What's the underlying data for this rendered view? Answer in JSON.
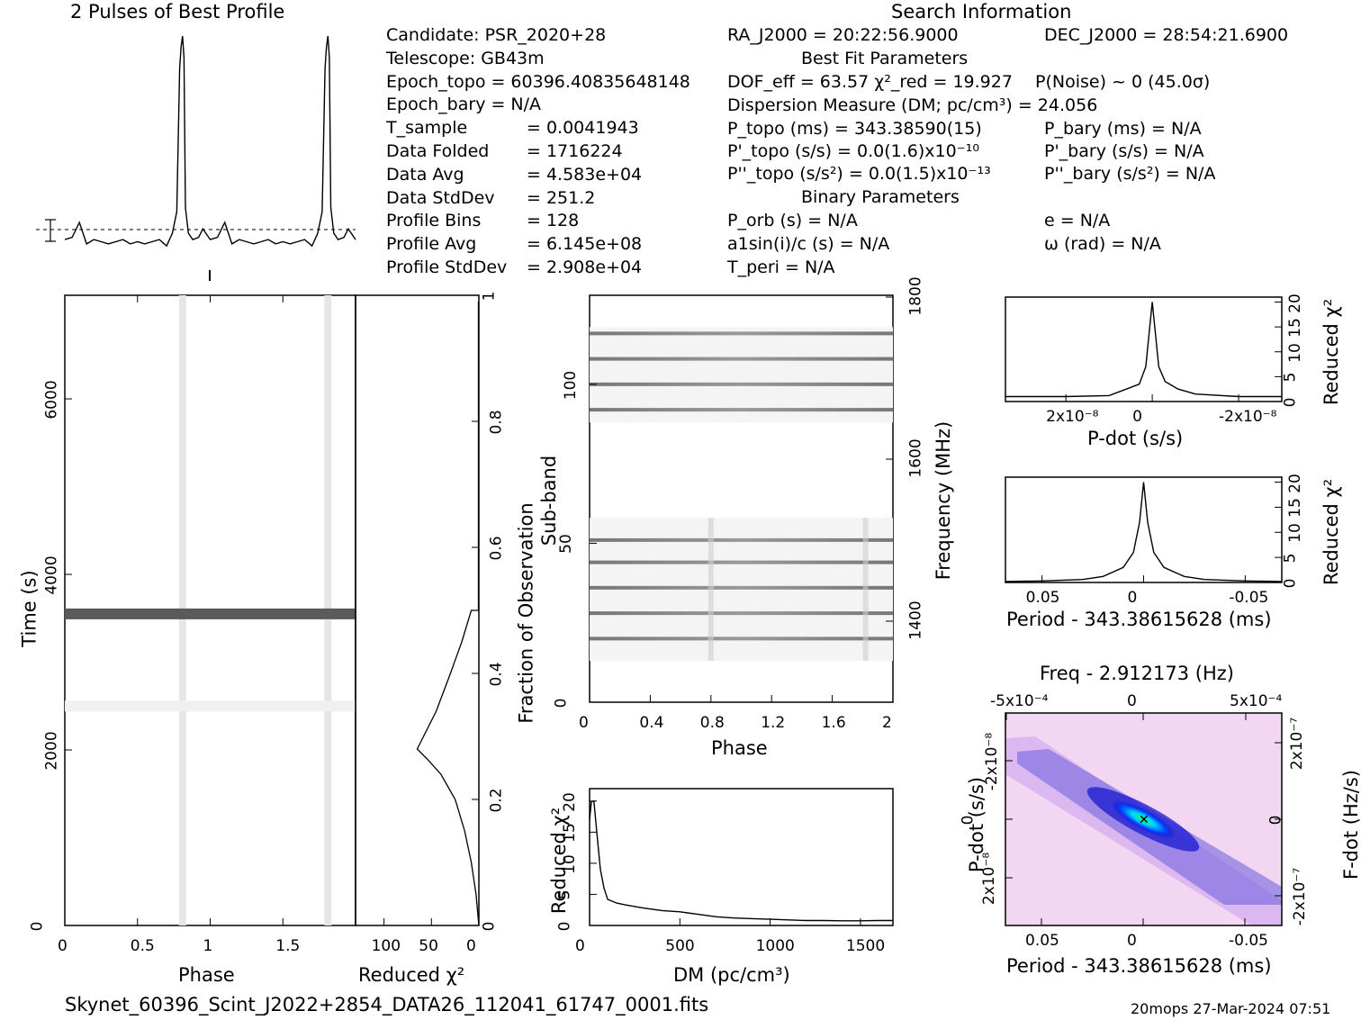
{
  "header": {
    "profile_title": "2 Pulses of Best Profile",
    "search_title": "Search Information",
    "best_fit_title": "Best Fit Parameters",
    "binary_title": "Binary Parameters"
  },
  "info_left": [
    [
      "Candidate:  PSR_2020+28",
      ""
    ],
    [
      "Telescope:  GB43m",
      ""
    ],
    [
      "Epoch_topo = 60396.40835648148",
      ""
    ],
    [
      "Epoch_bary = N/A",
      ""
    ],
    [
      "T_sample",
      "=   0.0041943"
    ],
    [
      "Data Folded",
      "=   1716224"
    ],
    [
      "Data Avg",
      "=   4.583e+04"
    ],
    [
      "Data StdDev",
      "=   251.2"
    ],
    [
      "Profile Bins",
      "=   128"
    ],
    [
      "Profile Avg",
      "=   6.145e+08"
    ],
    [
      "Profile StdDev",
      "=   2.908e+04"
    ]
  ],
  "info_mid": {
    "ra": "RA_J2000 = 20:22:56.9000",
    "dof": "DOF_eff = 63.57  χ²_red = 19.927",
    "dm": "Dispersion Measure (DM; pc/cm³) = 24.056",
    "p_topo": "P_topo (ms) =  343.38590(15)",
    "pd_topo": "P'_topo (s/s) = 0.0(1.6)x10⁻¹⁰",
    "pdd_topo": "P''_topo (s/s²) = 0.0(1.5)x10⁻¹³",
    "porb": "P_orb (s) = N/A",
    "a1": "a1sin(i)/c (s) = N/A",
    "tperi": "T_peri = N/A"
  },
  "info_right": {
    "dec": "DEC_J2000 = 28:54:21.6900",
    "pnoise": "P(Noise) ~ 0   (45.0σ)",
    "p_bary": "P_bary (ms) = N/A",
    "pd_bary": "P'_bary (s/s) = N/A",
    "pdd_bary": "P''_bary (s/s²) = N/A",
    "e": "e = N/A",
    "omega": "ω (rad) = N/A"
  },
  "footer": {
    "filename": "Skynet_60396_Scint_J2022+2854_DATA26_112041_61747_0001.fits",
    "stamp": "20mops 27-Mar-2024 07:51"
  },
  "chart_data": [
    {
      "type": "line",
      "name": "profile",
      "title": "2 Pulses of Best Profile",
      "x": [
        0,
        0.05,
        0.1,
        0.15,
        0.2,
        0.25,
        0.3,
        0.35,
        0.4,
        0.45,
        0.5,
        0.55,
        0.6,
        0.65,
        0.7,
        0.74,
        0.77,
        0.79,
        0.8,
        0.81,
        0.82,
        0.83,
        0.85,
        0.88,
        0.92,
        0.95,
        1.0,
        1.05,
        1.1,
        1.15,
        1.2,
        1.25,
        1.3,
        1.35,
        1.4,
        1.45,
        1.5,
        1.55,
        1.6,
        1.65,
        1.7,
        1.74,
        1.77,
        1.79,
        1.8,
        1.81,
        1.82,
        1.83,
        1.85,
        1.88,
        1.92,
        1.95,
        2.0
      ],
      "y": [
        0.05,
        0.06,
        0.13,
        0.03,
        0.05,
        0.04,
        0.03,
        0.04,
        0.05,
        0.03,
        0.04,
        0.03,
        0.04,
        0.05,
        0.02,
        0.08,
        0.18,
        0.85,
        0.95,
        1.0,
        0.9,
        0.2,
        0.08,
        0.05,
        0.06,
        0.1,
        0.05,
        0.06,
        0.13,
        0.03,
        0.05,
        0.04,
        0.03,
        0.04,
        0.05,
        0.03,
        0.04,
        0.03,
        0.04,
        0.05,
        0.02,
        0.08,
        0.18,
        0.85,
        0.95,
        1.0,
        0.9,
        0.2,
        0.08,
        0.05,
        0.06,
        0.1,
        0.05
      ]
    },
    {
      "type": "heatmap",
      "name": "time-phase",
      "xlabel": "Phase",
      "ylabel": "Time (s)",
      "xticks": [
        "0",
        "0.5",
        "1",
        "1.5"
      ],
      "yticks": [
        "0",
        "2000",
        "4000",
        "6000"
      ],
      "xlim": [
        0,
        2
      ],
      "ylim": [
        0,
        7180
      ],
      "pulse_phases": [
        0.81,
        1.81
      ],
      "bright_rows_time": [
        3550,
        2500
      ]
    },
    {
      "type": "line",
      "name": "chi2-vs-fraction",
      "xlabel": "Reduced χ²",
      "ylabel": "Fraction of Observation",
      "xticks": [
        "100",
        "50",
        "0"
      ],
      "yticks": [
        "0",
        "0.2",
        "0.4",
        "0.6",
        "0.8",
        "1"
      ],
      "xlim": [
        130,
        0
      ],
      "ylim": [
        0,
        1
      ],
      "x": [
        0,
        3,
        8,
        15,
        25,
        40,
        55,
        65,
        45,
        30,
        18,
        8,
        3,
        0.5,
        0.5
      ],
      "y": [
        0,
        0.05,
        0.1,
        0.15,
        0.2,
        0.24,
        0.265,
        0.28,
        0.34,
        0.4,
        0.45,
        0.5,
        0.5,
        0.5,
        0.99
      ]
    },
    {
      "type": "heatmap",
      "name": "subband-phase",
      "xlabel": "Phase",
      "ylabel": "Sub-band",
      "y2label": "Frequency (MHz)",
      "xticks": [
        "0",
        "0.4",
        "0.8",
        "1.2",
        "1.6",
        "2"
      ],
      "yticks": [
        "0",
        "50",
        "100"
      ],
      "y2ticks": [
        "1400",
        "1600",
        "1800"
      ],
      "xlim": [
        0,
        2
      ],
      "ylim": [
        0,
        128
      ],
      "dark_subbands": [
        20,
        28,
        36,
        44,
        51,
        92,
        100,
        108,
        116
      ]
    },
    {
      "type": "line",
      "name": "dm-curve",
      "xlabel": "DM (pc/cm³)",
      "ylabel": "Reduced χ²",
      "xticks": [
        "0",
        "500",
        "1000",
        "1500"
      ],
      "yticks": [
        "0",
        "5",
        "10",
        "15",
        "20"
      ],
      "xlim": [
        0,
        1680
      ],
      "ylim": [
        0,
        22
      ],
      "x": [
        0,
        10,
        24,
        40,
        60,
        80,
        100,
        150,
        200,
        300,
        400,
        500,
        600,
        700,
        800,
        900,
        1000,
        1100,
        1200,
        1300,
        1400,
        1500,
        1600,
        1680
      ],
      "y": [
        17,
        19.9,
        20,
        15,
        9,
        6,
        4.2,
        3.6,
        3.3,
        2.8,
        2.4,
        2.2,
        1.8,
        1.4,
        1.2,
        1.1,
        1.0,
        0.9,
        0.8,
        0.8,
        0.75,
        0.75,
        0.8,
        0.8
      ]
    },
    {
      "type": "line",
      "name": "pdot-curve",
      "xlabel": "P-dot (s/s)",
      "ylabel": "Reduced χ²",
      "xticks": [
        "2x10⁻⁸",
        "0",
        "-2x10⁻⁸"
      ],
      "yticks": [
        "0",
        "5",
        "10",
        "15",
        "20"
      ],
      "xlim": [
        3.4e-08,
        -3e-08
      ],
      "ylim": [
        0,
        21
      ],
      "x": [
        3.4e-08,
        2e-08,
        1e-08,
        6e-09,
        3e-09,
        1.5e-09,
        0,
        -1.5e-09,
        -3e-09,
        -6e-09,
        -1e-08,
        -2e-08,
        -3e-08
      ],
      "y": [
        1,
        1,
        1.2,
        2.5,
        3.5,
        7,
        20,
        7,
        4,
        2.5,
        1.5,
        1,
        1
      ]
    },
    {
      "type": "line",
      "name": "period-curve",
      "xlabel": "Period - 343.38615628 (ms)",
      "ylabel": "Reduced χ²",
      "xticks": [
        "0.05",
        "0",
        "-0.05"
      ],
      "yticks": [
        "0",
        "5",
        "10",
        "15",
        "20"
      ],
      "xlim": [
        0.068,
        -0.068
      ],
      "ylim": [
        0,
        21
      ],
      "x": [
        0.068,
        0.05,
        0.03,
        0.02,
        0.01,
        0.005,
        0.002,
        0,
        -0.002,
        -0.005,
        -0.01,
        -0.02,
        -0.03,
        -0.05,
        -0.068
      ],
      "y": [
        0.2,
        0.3,
        0.6,
        1.2,
        3,
        6,
        12,
        20,
        12,
        6,
        3,
        1.2,
        0.6,
        0.3,
        0.2
      ]
    },
    {
      "type": "heatmap",
      "name": "period-pdot",
      "title": "Freq - 2.912173 (Hz)",
      "xlabel": "Period - 343.38615628 (ms)",
      "ylabel": "P-dot (s/s)",
      "y2label": "F-dot (Hz/s)",
      "xticks": [
        "0.05",
        "0",
        "-0.05"
      ],
      "x2ticks": [
        "-5x10⁻⁴",
        "0",
        "5x10⁻⁴"
      ],
      "yticks": [
        "-2x10⁻⁸",
        "0",
        "2x10⁻⁸"
      ],
      "y2ticks": [
        "2x10⁻⁷",
        "0",
        "-2x10⁻⁷"
      ]
    }
  ]
}
